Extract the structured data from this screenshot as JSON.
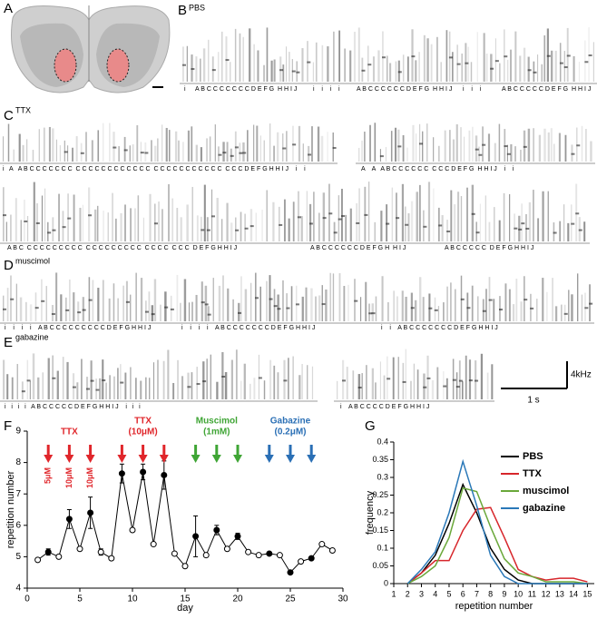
{
  "panels": [
    {
      "letter": "A"
    },
    {
      "letter": "B",
      "label": "PBS",
      "syllables": [
        "i",
        "A B C C C C C C C D E F G  H H I J",
        "i    i    i    i",
        "A B C C C C C C D E F G  H H I J",
        "i    i    i",
        "A B C C C C C D E F G  H H I J"
      ]
    },
    {
      "letter": "C",
      "label": "TTX",
      "syllables": [
        "i   A   A B C C C C C C C  C C C C C C C C C C C C  C C C C C C C C C C C  C C C D E F G H H I J    i    i",
        "A    A   A B C C C C C C  C C C D E F G  H H I J    i    i",
        "A B C  C C C C C C C C C  C C C C C C C C C  C C C C  C C C  D E F G H H I J",
        "A B C C C C C C D E F G H  H I J",
        "A B C C C C C  D E F G H H I J"
      ]
    },
    {
      "letter": "D",
      "label": "muscimol",
      "syllables": [
        "i    i    i    i    A B C C C C C C C C C D E F G H H I J",
        "i    i    i    i    A B C C C C C C C D E F G H H I J",
        "i    i    A B C C C C C C C D E F G H H I J"
      ]
    },
    {
      "letter": "E",
      "label": "gabazine",
      "syllables": [
        "i   i   i   i   A B C C C C C D E F G H H I J    i   i   i",
        "i    A B C C C C D E F G H H I J"
      ]
    }
  ],
  "scale_bar": {
    "frequency": "4kHz",
    "time": "1 s"
  },
  "chart_data": [
    {
      "type": "line",
      "letter": "F",
      "x_label": "day",
      "y_label": "repetition number",
      "x": [
        1,
        2,
        3,
        4,
        5,
        6,
        7,
        8,
        9,
        10,
        11,
        12,
        13,
        14,
        15,
        16,
        17,
        18,
        19,
        20,
        21,
        22,
        23,
        24,
        25,
        26,
        27,
        28,
        29
      ],
      "values": [
        4.9,
        5.15,
        5.0,
        6.2,
        5.25,
        6.4,
        5.15,
        4.95,
        7.65,
        5.85,
        7.7,
        5.4,
        7.6,
        5.1,
        4.7,
        5.65,
        5.05,
        5.85,
        5.25,
        5.65,
        5.15,
        5.05,
        5.1,
        5.05,
        4.5,
        4.85,
        4.95,
        5.4,
        5.2
      ],
      "errors": [
        null,
        0.1,
        null,
        0.3,
        null,
        0.5,
        0.1,
        null,
        0.3,
        null,
        0.25,
        null,
        0.45,
        null,
        null,
        0.65,
        null,
        0.15,
        null,
        0.1,
        null,
        null,
        null,
        null,
        null,
        null,
        null,
        null,
        null
      ],
      "filled": [
        false,
        true,
        false,
        true,
        false,
        true,
        false,
        false,
        true,
        false,
        true,
        false,
        true,
        false,
        false,
        true,
        false,
        true,
        false,
        true,
        false,
        false,
        true,
        false,
        true,
        false,
        true,
        false,
        false
      ],
      "xlim": [
        0,
        30
      ],
      "xticks": [
        0,
        5,
        10,
        15,
        20,
        25,
        30
      ],
      "ylim": [
        4,
        9
      ],
      "yticks": [
        4,
        5,
        6,
        7,
        8,
        9
      ],
      "arrows": [
        {
          "x": 2,
          "color": "#e0262b"
        },
        {
          "x": 4,
          "color": "#e0262b"
        },
        {
          "x": 6,
          "color": "#e0262b"
        },
        {
          "x": 9,
          "color": "#e0262b"
        },
        {
          "x": 11,
          "color": "#e0262b"
        },
        {
          "x": 13,
          "color": "#e0262b"
        },
        {
          "x": 16,
          "color": "#3fa535"
        },
        {
          "x": 18,
          "color": "#3fa535"
        },
        {
          "x": 20,
          "color": "#3fa535"
        },
        {
          "x": 23,
          "color": "#2a6fb5"
        },
        {
          "x": 25,
          "color": "#2a6fb5"
        },
        {
          "x": 27,
          "color": "#2a6fb5"
        }
      ],
      "annotations": [
        {
          "lines": [
            "TTX"
          ],
          "x": 4,
          "color": "#e0262b"
        },
        {
          "lines": [
            "TTX",
            "(10μM)"
          ],
          "x": 11,
          "color": "#e0262b"
        },
        {
          "lines": [
            "Muscimol",
            "(1mM)"
          ],
          "x": 18,
          "color": "#3fa535"
        },
        {
          "lines": [
            "Gabazine",
            "(0.2μM)"
          ],
          "x": 25,
          "color": "#2a6fb5"
        }
      ],
      "doses": [
        {
          "text": "5μM",
          "x": 2,
          "color": "#e0262b"
        },
        {
          "text": "10μM",
          "x": 4,
          "color": "#e0262b"
        },
        {
          "text": "10μM",
          "x": 6,
          "color": "#e0262b"
        }
      ]
    },
    {
      "type": "line",
      "letter": "G",
      "x_label": "repetition number",
      "y_label": "frequency",
      "x": [
        2,
        3,
        4,
        5,
        6,
        7,
        8,
        9,
        10,
        11,
        12,
        13,
        14,
        15
      ],
      "xlim": [
        1,
        15.5
      ],
      "xticks": [
        1,
        2,
        3,
        4,
        5,
        6,
        7,
        8,
        9,
        10,
        11,
        12,
        13,
        14,
        15
      ],
      "ylim": [
        0,
        0.4
      ],
      "yticks": [
        0,
        0.05,
        0.1,
        0.15,
        0.2,
        0.25,
        0.3,
        0.35,
        0.4
      ],
      "legend": "upper right",
      "series": [
        {
          "name": "PBS",
          "color": "#000000",
          "values": [
            0,
            0.03,
            0.08,
            0.17,
            0.28,
            0.2,
            0.1,
            0.04,
            0.01,
            0,
            0,
            0,
            0,
            0
          ]
        },
        {
          "name": "TTX",
          "color": "#d7262b",
          "values": [
            0,
            0.03,
            0.065,
            0.065,
            0.15,
            0.21,
            0.215,
            0.13,
            0.04,
            0.02,
            0.01,
            0.015,
            0.015,
            0.005
          ]
        },
        {
          "name": "muscimol",
          "color": "#6aa83a",
          "values": [
            0,
            0.02,
            0.05,
            0.13,
            0.27,
            0.26,
            0.16,
            0.07,
            0.03,
            0.02,
            0.005,
            0.005,
            0.005,
            0
          ]
        },
        {
          "name": "gabazine",
          "color": "#2a78b8",
          "values": [
            0,
            0.04,
            0.09,
            0.2,
            0.345,
            0.22,
            0.08,
            0.02,
            0,
            0,
            0,
            0,
            0,
            0
          ]
        }
      ]
    }
  ]
}
